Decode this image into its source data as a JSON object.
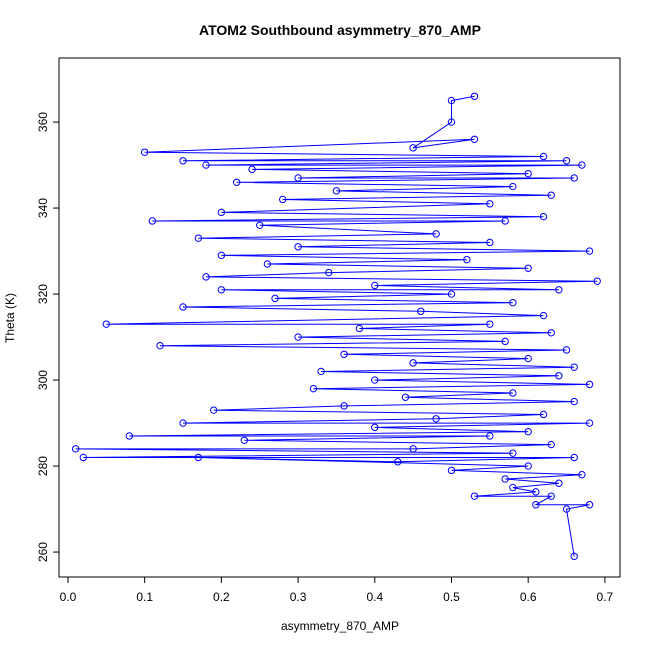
{
  "chart_data": {
    "type": "line",
    "title": "ATOM2 Southbound asymmetry_870_AMP",
    "x_label": "asymmetry_870_AMP",
    "y_label": "Theta (K)",
    "color": "#0000ff",
    "marker": "circle",
    "x": [
      0.53,
      0.5,
      0.5,
      0.45,
      0.53,
      0.1,
      0.62,
      0.15,
      0.65,
      0.18,
      0.67,
      0.24,
      0.6,
      0.3,
      0.66,
      0.22,
      0.58,
      0.35,
      0.63,
      0.28,
      0.55,
      0.2,
      0.62,
      0.11,
      0.57,
      0.25,
      0.48,
      0.17,
      0.55,
      0.3,
      0.68,
      0.2,
      0.52,
      0.26,
      0.6,
      0.34,
      0.18,
      0.69,
      0.4,
      0.64,
      0.2,
      0.5,
      0.27,
      0.58,
      0.15,
      0.46,
      0.62,
      0.05,
      0.55,
      0.38,
      0.63,
      0.3,
      0.57,
      0.12,
      0.65,
      0.36,
      0.6,
      0.45,
      0.66,
      0.33,
      0.64,
      0.4,
      0.68,
      0.32,
      0.58,
      0.44,
      0.66,
      0.36,
      0.19,
      0.62,
      0.48,
      0.15,
      0.68,
      0.4,
      0.6,
      0.08,
      0.55,
      0.23,
      0.63,
      0.45,
      0.01,
      0.58,
      0.02,
      0.66,
      0.43,
      0.17,
      0.6,
      0.5,
      0.67,
      0.57,
      0.64,
      0.58,
      0.61,
      0.53,
      0.63,
      0.61,
      0.68,
      0.65,
      0.66
    ],
    "values": [
      366,
      365,
      360,
      354,
      356,
      353,
      352,
      351,
      351,
      350,
      350,
      349,
      348,
      347,
      347,
      346,
      345,
      344,
      343,
      342,
      341,
      339,
      338,
      337,
      337,
      336,
      334,
      333,
      332,
      331,
      330,
      329,
      328,
      327,
      326,
      325,
      324,
      323,
      322,
      321,
      321,
      320,
      319,
      318,
      317,
      316,
      315,
      313,
      313,
      312,
      311,
      310,
      309,
      308,
      307,
      306,
      305,
      304,
      303,
      302,
      301,
      300,
      299,
      298,
      297,
      296,
      295,
      294,
      293,
      292,
      291,
      290,
      290,
      289,
      288,
      287,
      287,
      286,
      285,
      284,
      284,
      283,
      282,
      282,
      281,
      282,
      280,
      279,
      278,
      277,
      276,
      275,
      274,
      273,
      273,
      271,
      271,
      270,
      259
    ],
    "xlim": [
      -0.0117,
      0.7197
    ],
    "ylim": [
      254.2,
      374.9
    ],
    "xticks": [
      {
        "value": 0,
        "label": "0.0"
      },
      0.1,
      0.2,
      0.3,
      0.4,
      0.5,
      0.6,
      0.7
    ],
    "yticks": [
      260,
      280,
      300,
      320,
      340,
      360
    ],
    "grid": false
  }
}
